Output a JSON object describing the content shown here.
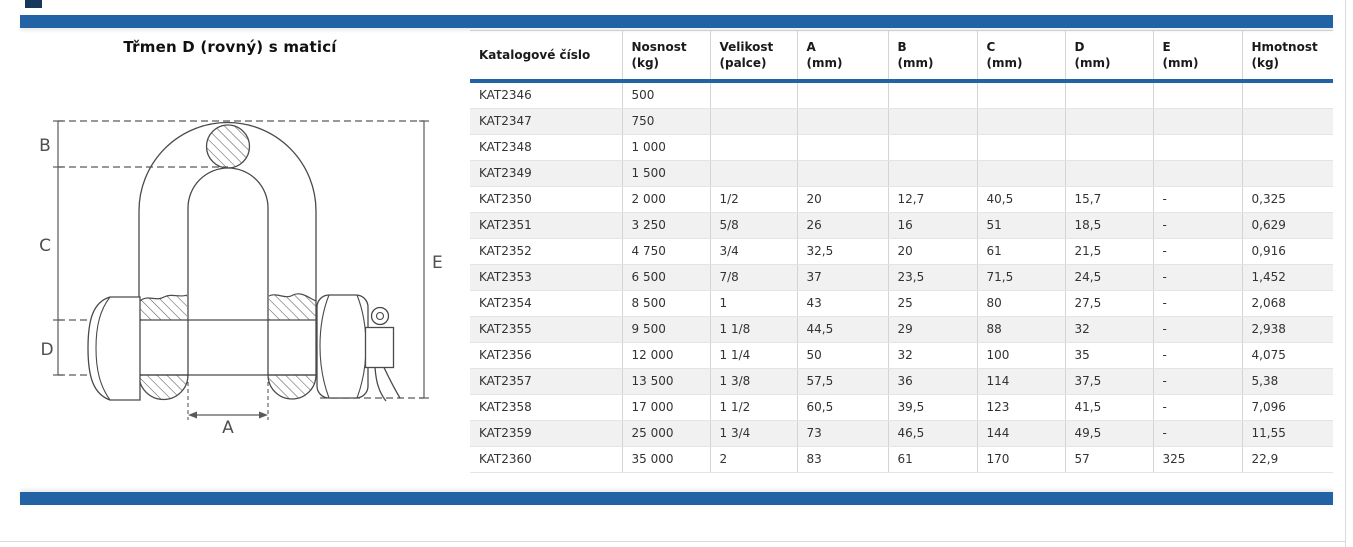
{
  "page": {
    "title": "Třmen D (rovný) s maticí",
    "accent_color": "#2163a5",
    "dark_accent_color": "#17375d"
  },
  "diagram": {
    "description": "technical-drawing-d-shackle-with-bolt-nut-and-cotter-pin",
    "labels": {
      "a": "A",
      "b": "B",
      "c": "C",
      "d": "D",
      "e": "E"
    }
  },
  "table": {
    "columns": [
      {
        "label": "Katalogové číslo",
        "sub": ""
      },
      {
        "label": "Nosnost",
        "sub": "(kg)"
      },
      {
        "label": "Velikost",
        "sub": "(palce)"
      },
      {
        "label": "A",
        "sub": "(mm)"
      },
      {
        "label": "B",
        "sub": "(mm)"
      },
      {
        "label": "C",
        "sub": "(mm)"
      },
      {
        "label": "D",
        "sub": "(mm)"
      },
      {
        "label": "E",
        "sub": "(mm)"
      },
      {
        "label": "Hmotnost",
        "sub": "(kg)"
      }
    ],
    "rows": [
      [
        "KAT2346",
        "500",
        "",
        "",
        "",
        "",
        "",
        "",
        ""
      ],
      [
        "KAT2347",
        "750",
        "",
        "",
        "",
        "",
        "",
        "",
        ""
      ],
      [
        "KAT2348",
        "1 000",
        "",
        "",
        "",
        "",
        "",
        "",
        ""
      ],
      [
        "KAT2349",
        "1 500",
        "",
        "",
        "",
        "",
        "",
        "",
        ""
      ],
      [
        "KAT2350",
        "2 000",
        "1/2",
        "20",
        "12,7",
        "40,5",
        "15,7",
        "-",
        "0,325"
      ],
      [
        "KAT2351",
        "3 250",
        "5/8",
        "26",
        "16",
        "51",
        "18,5",
        "-",
        "0,629"
      ],
      [
        "KAT2352",
        "4 750",
        "3/4",
        "32,5",
        "20",
        "61",
        "21,5",
        "-",
        "0,916"
      ],
      [
        "KAT2353",
        "6 500",
        "7/8",
        "37",
        "23,5",
        "71,5",
        "24,5",
        "-",
        "1,452"
      ],
      [
        "KAT2354",
        "8 500",
        "1",
        "43",
        "25",
        "80",
        "27,5",
        "-",
        "2,068"
      ],
      [
        "KAT2355",
        "9 500",
        "1 1/8",
        "44,5",
        "29",
        "88",
        "32",
        "-",
        "2,938"
      ],
      [
        "KAT2356",
        "12 000",
        "1 1/4",
        "50",
        "32",
        "100",
        "35",
        "-",
        "4,075"
      ],
      [
        "KAT2357",
        "13 500",
        "1 3/8",
        "57,5",
        "36",
        "114",
        "37,5",
        "-",
        "5,38"
      ],
      [
        "KAT2358",
        "17 000",
        "1 1/2",
        "60,5",
        "39,5",
        "123",
        "41,5",
        "-",
        "7,096"
      ],
      [
        "KAT2359",
        "25 000",
        "1 3/4",
        "73",
        "46,5",
        "144",
        "49,5",
        "-",
        "11,55"
      ],
      [
        "KAT2360",
        "35 000",
        "2",
        "83",
        "61",
        "170",
        "57",
        "325",
        "22,9"
      ]
    ]
  }
}
